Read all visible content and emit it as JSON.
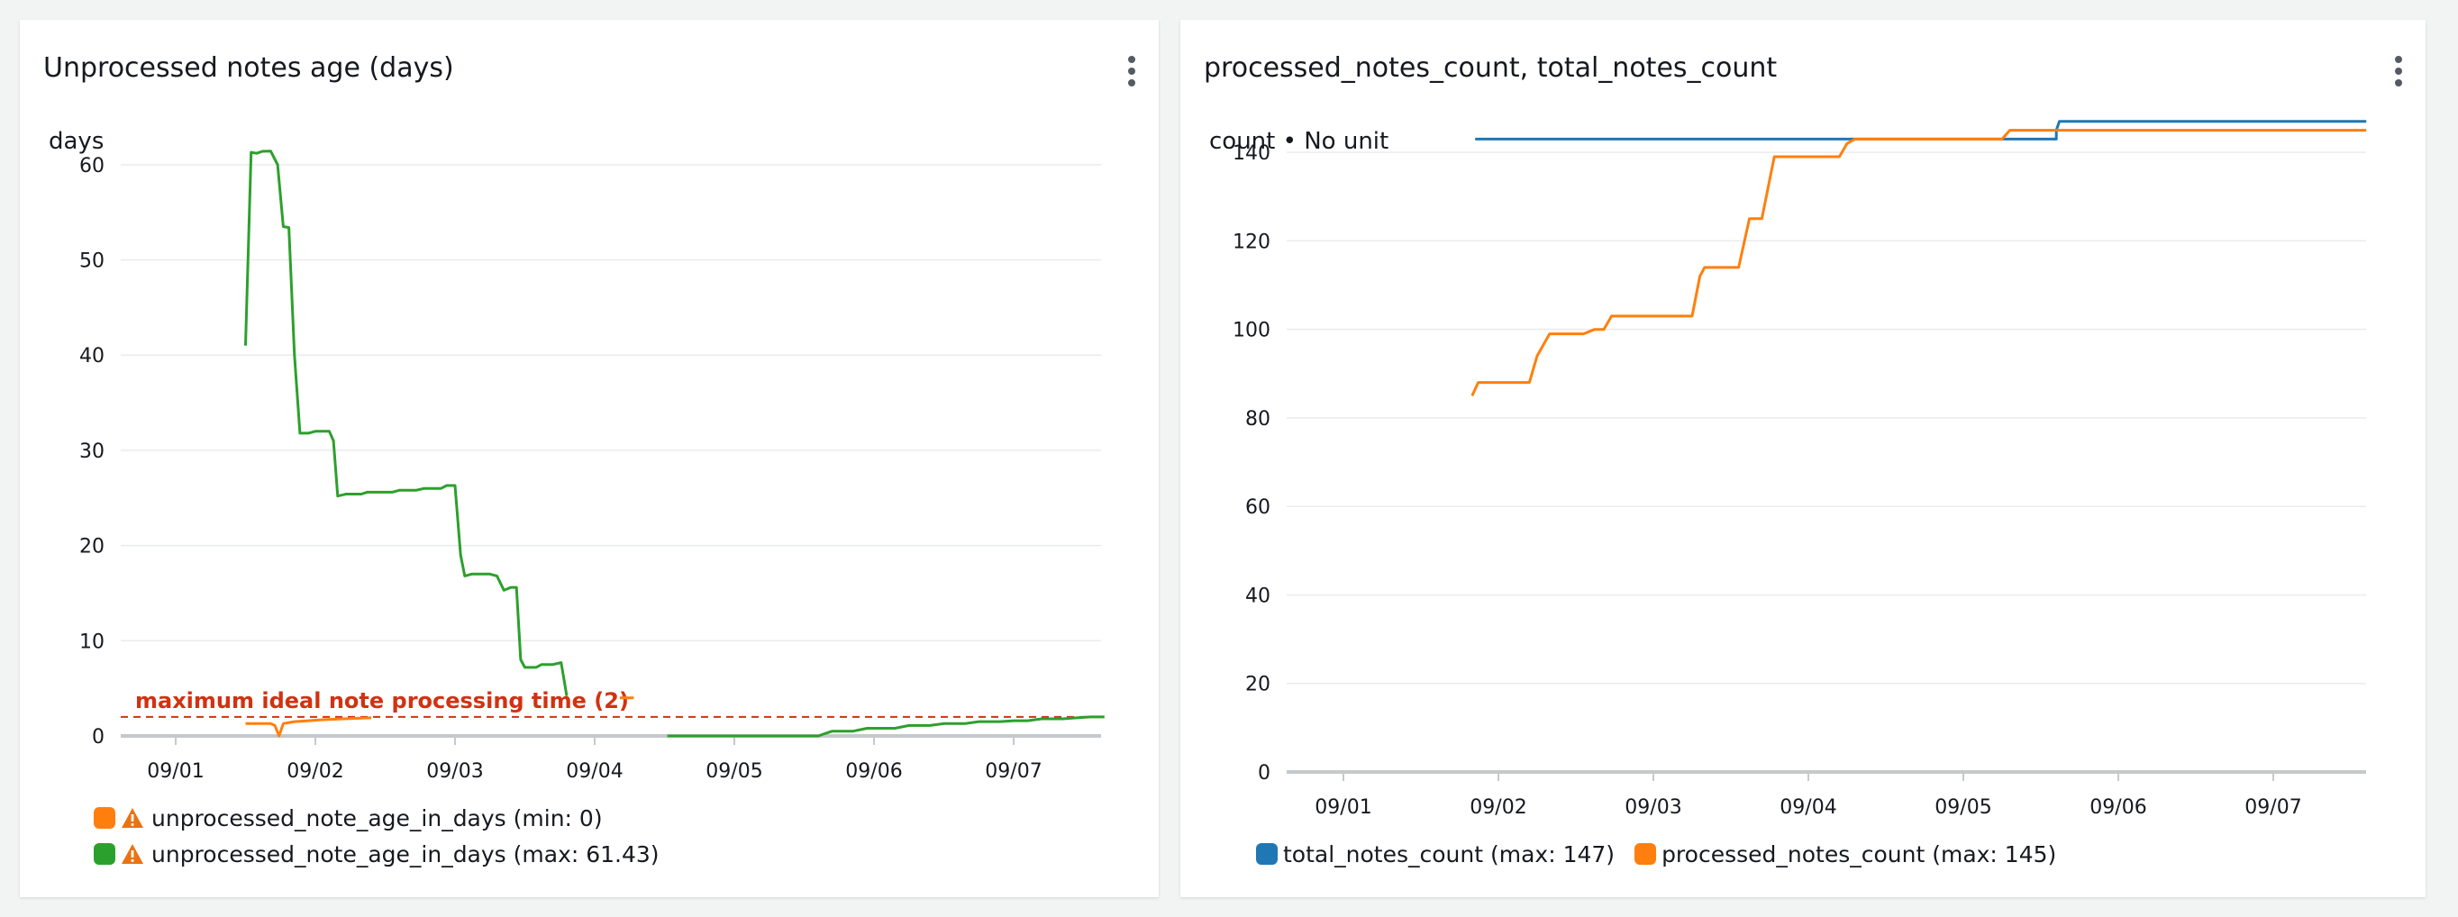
{
  "left_panel": {
    "title": "Unprocessed notes age (days)",
    "menu_icon": "kebab-menu-icon",
    "unit_label": "days",
    "annotation_label": "maximum ideal note processing time (2)",
    "annotation_value": 2,
    "annotation_color": "#d13212",
    "legend": [
      {
        "label": "unprocessed_note_age_in_days (min: 0)",
        "color": "#ff7f0e",
        "icon": "warning-icon"
      },
      {
        "label": "unprocessed_note_age_in_days (max: 61.43)",
        "color": "#2ca02c",
        "icon": "warning-icon"
      }
    ]
  },
  "right_panel": {
    "title": "processed_notes_count, total_notes_count",
    "menu_icon": "kebab-menu-icon",
    "unit_label": "count • No unit",
    "legend": [
      {
        "label": "total_notes_count (max: 147)",
        "color": "#1f77b4"
      },
      {
        "label": "processed_notes_count (max: 145)",
        "color": "#ff7f0e"
      }
    ]
  },
  "chart_data": [
    {
      "type": "line",
      "title": "Unprocessed notes age (days)",
      "ylabel": "days",
      "ylim": [
        0,
        65
      ],
      "yticks": [
        0,
        10,
        20,
        30,
        40,
        50,
        60
      ],
      "xticks": [
        "09/01",
        "09/02",
        "09/03",
        "09/04",
        "09/05",
        "09/06",
        "09/07"
      ],
      "grid": true,
      "legend_position": "bottom",
      "x_unit": "days since 09/01",
      "horizontal_annotation": {
        "label": "maximum ideal note processing time (2)",
        "value": 2
      },
      "series": [
        {
          "name": "unprocessed_note_age_in_days (min: 0)",
          "color": "#ff7f0e",
          "points": [
            [
              0.5,
              1.3
            ],
            [
              0.68,
              1.3
            ],
            [
              0.71,
              1.1
            ],
            [
              0.74,
              0
            ],
            [
              0.77,
              1.3
            ],
            [
              0.85,
              1.5
            ],
            [
              0.95,
              1.6
            ],
            [
              1.05,
              1.7
            ],
            [
              1.2,
              1.8
            ],
            [
              1.4,
              1.9
            ]
          ]
        },
        {
          "name": "unprocessed_note_age_in_days (min: 0)",
          "color": "#ff7f0e",
          "points": [
            [
              3.18,
              4.0
            ],
            [
              3.28,
              4.0
            ]
          ]
        },
        {
          "name": "unprocessed_note_age_in_days (max: 61.43)",
          "color": "#2ca02c",
          "points": [
            [
              0.5,
              41
            ],
            [
              0.54,
              61.3
            ],
            [
              0.58,
              61.2
            ],
            [
              0.62,
              61.4
            ],
            [
              0.68,
              61.43
            ],
            [
              0.73,
              60
            ],
            [
              0.77,
              53.5
            ],
            [
              0.81,
              53.4
            ],
            [
              0.85,
              40
            ],
            [
              0.89,
              31.8
            ],
            [
              0.95,
              31.8
            ],
            [
              1.0,
              32
            ],
            [
              1.05,
              32
            ],
            [
              1.1,
              32
            ],
            [
              1.13,
              31
            ],
            [
              1.16,
              25.2
            ],
            [
              1.22,
              25.4
            ],
            [
              1.33,
              25.4
            ],
            [
              1.37,
              25.6
            ],
            [
              1.45,
              25.6
            ],
            [
              1.55,
              25.6
            ],
            [
              1.6,
              25.8
            ],
            [
              1.72,
              25.8
            ],
            [
              1.78,
              26
            ],
            [
              1.9,
              26
            ],
            [
              1.94,
              26.3
            ],
            [
              2.0,
              26.3
            ],
            [
              2.04,
              19
            ],
            [
              2.07,
              16.8
            ],
            [
              2.12,
              17
            ],
            [
              2.25,
              17
            ],
            [
              2.3,
              16.8
            ],
            [
              2.35,
              15.3
            ],
            [
              2.4,
              15.6
            ],
            [
              2.44,
              15.6
            ],
            [
              2.47,
              8
            ],
            [
              2.5,
              7.2
            ],
            [
              2.58,
              7.2
            ],
            [
              2.62,
              7.5
            ],
            [
              2.7,
              7.5
            ],
            [
              2.76,
              7.7
            ],
            [
              2.8,
              4.2
            ]
          ]
        },
        {
          "name": "unprocessed_note_age_in_days (max: 61.43)",
          "color": "#2ca02c",
          "points": [
            [
              3.52,
              0
            ],
            [
              4.6,
              0
            ],
            [
              4.7,
              0.5
            ],
            [
              4.85,
              0.5
            ],
            [
              4.95,
              0.8
            ],
            [
              5.15,
              0.8
            ],
            [
              5.25,
              1.1
            ],
            [
              5.4,
              1.1
            ],
            [
              5.5,
              1.3
            ],
            [
              5.65,
              1.3
            ],
            [
              5.75,
              1.5
            ],
            [
              5.9,
              1.5
            ],
            [
              6.0,
              1.6
            ],
            [
              6.1,
              1.6
            ],
            [
              6.2,
              1.8
            ],
            [
              6.35,
              1.8
            ],
            [
              6.45,
              1.9
            ],
            [
              6.55,
              2.0
            ],
            [
              6.65,
              2.0
            ]
          ]
        }
      ]
    },
    {
      "type": "line",
      "title": "processed_notes_count, total_notes_count",
      "ylabel": "count • No unit",
      "ylim": [
        0,
        150
      ],
      "yticks": [
        0,
        20,
        40,
        60,
        80,
        100,
        120,
        140
      ],
      "xticks": [
        "09/01",
        "09/02",
        "09/03",
        "09/04",
        "09/05",
        "09/06",
        "09/07"
      ],
      "grid": true,
      "legend_position": "bottom",
      "x_unit": "days since 09/01",
      "series": [
        {
          "name": "total_notes_count (max: 147)",
          "color": "#1f77b4",
          "points": [
            [
              0.85,
              143
            ],
            [
              4.25,
              143
            ],
            [
              4.3,
              143
            ],
            [
              4.6,
              143
            ],
            [
              4.6,
              145
            ],
            [
              4.62,
              147
            ],
            [
              6.6,
              147
            ]
          ]
        },
        {
          "name": "processed_notes_count (max: 145)",
          "color": "#ff7f0e",
          "points": [
            [
              0.83,
              85
            ],
            [
              0.87,
              88
            ],
            [
              1.0,
              88
            ],
            [
              1.2,
              88
            ],
            [
              1.25,
              94
            ],
            [
              1.33,
              99
            ],
            [
              1.55,
              99
            ],
            [
              1.62,
              100
            ],
            [
              1.68,
              100
            ],
            [
              1.73,
              103
            ],
            [
              2.0,
              103
            ],
            [
              2.25,
              103
            ],
            [
              2.3,
              112
            ],
            [
              2.33,
              114
            ],
            [
              2.55,
              114
            ],
            [
              2.62,
              125
            ],
            [
              2.7,
              125
            ],
            [
              2.78,
              139
            ],
            [
              3.0,
              139
            ],
            [
              3.2,
              139
            ],
            [
              3.25,
              142
            ],
            [
              3.3,
              143
            ],
            [
              3.5,
              143
            ],
            [
              4.25,
              143
            ],
            [
              4.3,
              145
            ],
            [
              4.6,
              145
            ],
            [
              6.6,
              145
            ]
          ]
        }
      ]
    }
  ]
}
